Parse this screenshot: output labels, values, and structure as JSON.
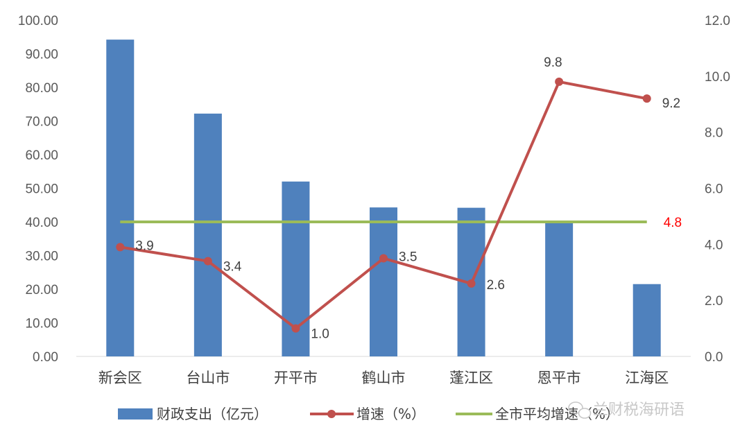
{
  "chart_data": {
    "type": "bar+line",
    "categories": [
      "新会区",
      "台山市",
      "开平市",
      "鹤山市",
      "蓬江区",
      "恩平市",
      "江海区"
    ],
    "series": [
      {
        "name": "财政支出（亿元）",
        "kind": "bar",
        "axis": "left",
        "color": "#4f81bd",
        "values": [
          94.2,
          72.2,
          52.0,
          44.3,
          44.2,
          40.0,
          21.5
        ]
      },
      {
        "name": "增速（%）",
        "kind": "line",
        "axis": "right",
        "color": "#c0504d",
        "values": [
          3.9,
          3.4,
          1.0,
          3.5,
          2.6,
          9.8,
          9.2
        ],
        "labels": [
          "3.9",
          "3.4",
          "1.0",
          "3.5",
          "2.6",
          "9.8",
          "9.2"
        ]
      },
      {
        "name": "全市平均增速（%）",
        "kind": "line",
        "axis": "right",
        "color": "#9bbb59",
        "value": 4.8,
        "label": "4.8",
        "label_color": "#ff0000"
      }
    ],
    "yleft": {
      "min": 0,
      "max": 100,
      "step": 10,
      "ticks": [
        "0.00",
        "10.00",
        "20.00",
        "30.00",
        "40.00",
        "50.00",
        "60.00",
        "70.00",
        "80.00",
        "90.00",
        "100.00"
      ]
    },
    "yright": {
      "min": 0,
      "max": 12,
      "step": 2,
      "ticks": [
        "0.0",
        "2.0",
        "4.0",
        "6.0",
        "8.0",
        "10.0",
        "12.0"
      ]
    },
    "grid": false,
    "legend": "bottom"
  },
  "watermark": "兰财税海研语"
}
